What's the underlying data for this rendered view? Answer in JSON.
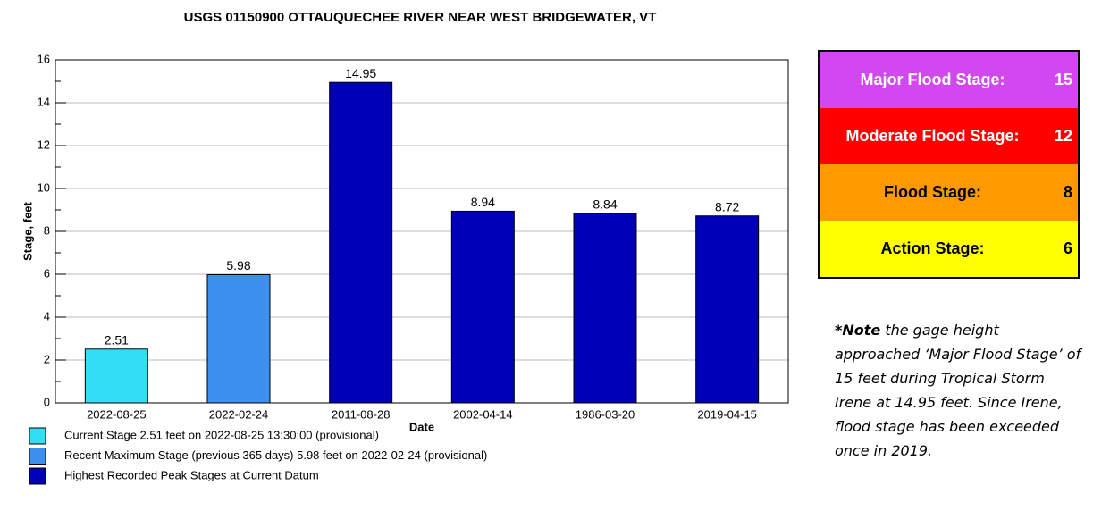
{
  "chart_data": {
    "type": "bar",
    "title": "USGS 01150900 OTTAUQUECHEE RIVER NEAR WEST BRIDGEWATER, VT",
    "xlabel": "Date",
    "ylabel": "Stage, feet",
    "categories": [
      "2022-08-25",
      "2022-02-24",
      "2011-08-28",
      "2002-04-14",
      "1986-03-20",
      "2019-04-15"
    ],
    "values": [
      2.51,
      5.98,
      14.95,
      8.94,
      8.84,
      8.72
    ],
    "colors": [
      "#33def5",
      "#3d8ff0",
      "#0000b8",
      "#0000b8",
      "#0000b8",
      "#0000b8"
    ],
    "ylim": [
      0,
      16
    ],
    "yticks": [
      0,
      2,
      4,
      6,
      8,
      10,
      12,
      14,
      16
    ],
    "yminor_ticks": [
      1,
      3,
      5,
      7,
      9,
      11,
      13,
      15
    ],
    "grid": true,
    "legend": [
      {
        "label": "Current Stage 2.51 feet on 2022-08-25 13:30:00 (provisional)",
        "color": "#33def5"
      },
      {
        "label": "Recent Maximum Stage (previous 365 days) 5.98 feet on 2022-02-24 (provisional)",
        "color": "#3d8ff0"
      },
      {
        "label": "Highest Recorded Peak Stages at Current Datum",
        "color": "#0000b8"
      }
    ]
  },
  "flood_stages": [
    {
      "label": "Major Flood Stage:",
      "value": 15,
      "color": "#d147f0",
      "text_color": "#ffffff"
    },
    {
      "label": "Moderate Flood Stage:",
      "value": 12,
      "color": "#ff0000",
      "text_color": "#ffffff"
    },
    {
      "label": "Flood Stage:",
      "value": 8,
      "color": "#ff9900",
      "text_color": "#000000"
    },
    {
      "label": "Action Stage:",
      "value": 6,
      "color": "#ffff00",
      "text_color": "#000000"
    }
  ],
  "note": {
    "lead": "*Note",
    "text": " the gage height approached ‘Major Flood Stage’ of 15 feet during Tropical Storm Irene at 14.95 feet. Since Irene, flood stage has been exceeded once in 2019."
  }
}
